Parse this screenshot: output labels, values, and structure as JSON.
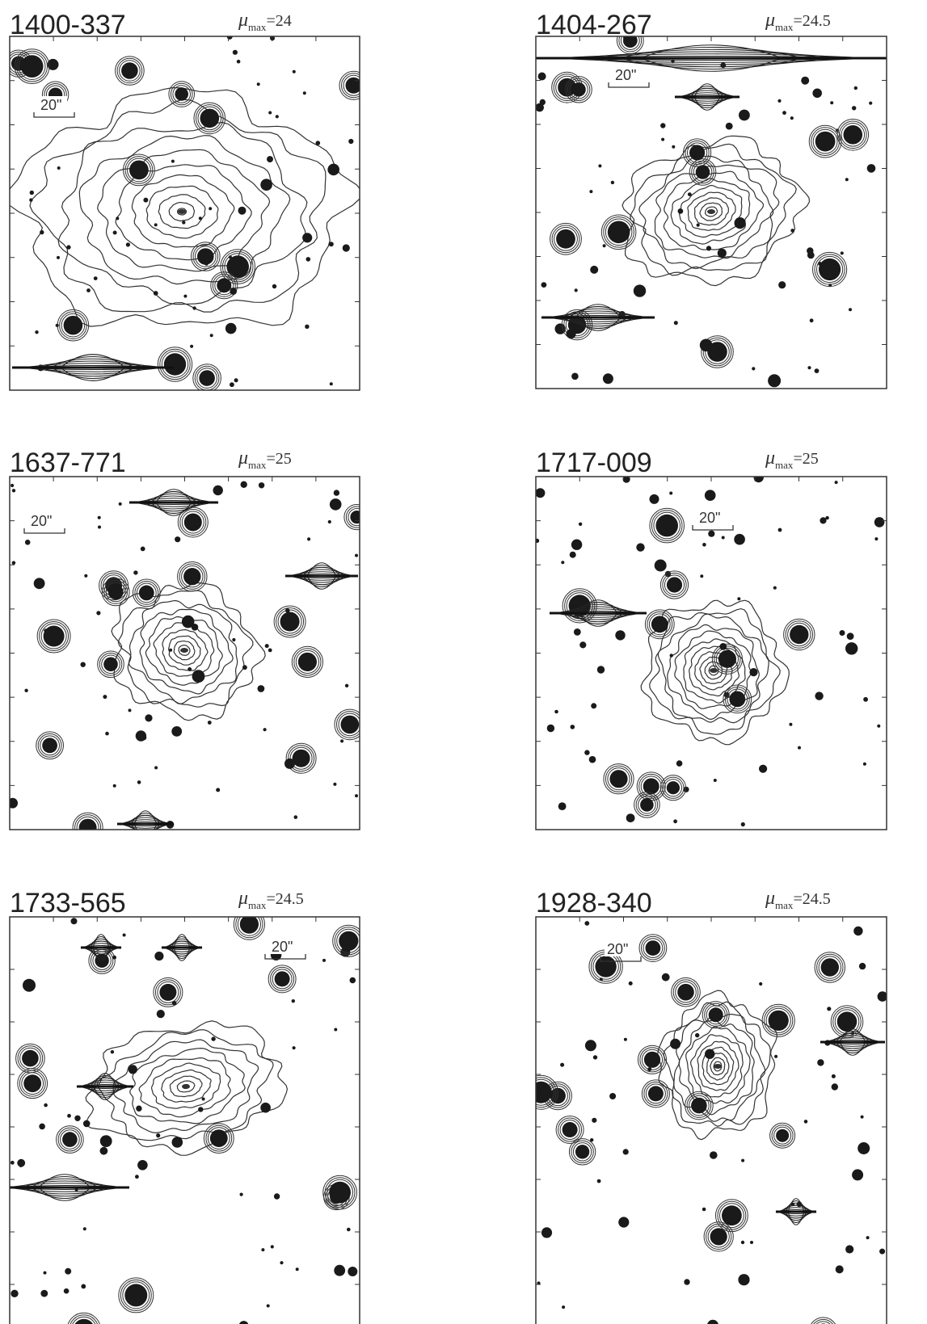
{
  "panels": [
    {
      "label": "1400-337",
      "mu": {
        "symbol": "μ",
        "subscript": "max",
        "equals": "=",
        "value": "24"
      },
      "scale_bar": "20\""
    },
    {
      "label": "1404-267",
      "mu": {
        "symbol": "μ",
        "subscript": "max",
        "equals": "=",
        "value": "24.5"
      },
      "scale_bar": "20\""
    },
    {
      "label": "1637-771",
      "mu": {
        "symbol": "μ",
        "subscript": "max",
        "equals": "=",
        "value": "25"
      },
      "scale_bar": "20\""
    },
    {
      "label": "1717-009",
      "mu": {
        "symbol": "μ",
        "subscript": "max",
        "equals": "=",
        "value": "25"
      },
      "scale_bar": "20\""
    },
    {
      "label": "1733-565",
      "mu": {
        "symbol": "μ",
        "subscript": "max",
        "equals": "=",
        "value": "24.5"
      },
      "scale_bar": "20\""
    },
    {
      "label": "1928-340",
      "mu": {
        "symbol": "μ",
        "subscript": "max",
        "equals": "=",
        "value": "24.5"
      },
      "scale_bar": "20\""
    }
  ]
}
